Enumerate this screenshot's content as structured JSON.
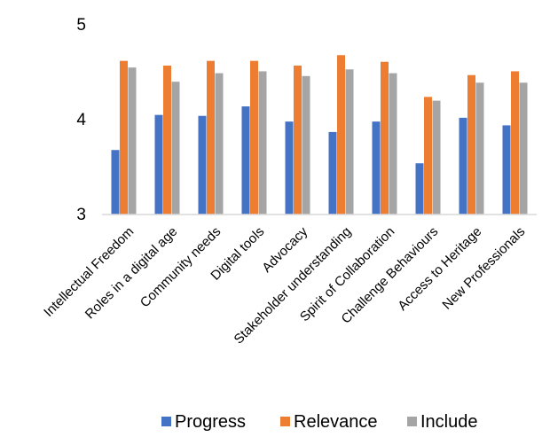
{
  "chart_data": {
    "type": "bar",
    "categories": [
      "Intellectual Freedom",
      "Roles in a digital age",
      "Community needs",
      "Digital tools",
      "Advocacy",
      "Stakeholder understanding",
      "Spirit of Collaboration",
      "Challenge Behaviours",
      "Access to Heritage",
      "New Professionals"
    ],
    "series": [
      {
        "name": "Progress",
        "color": "#4472C4",
        "values": [
          3.68,
          4.05,
          4.04,
          4.14,
          3.98,
          3.87,
          3.98,
          3.54,
          4.02,
          3.94
        ]
      },
      {
        "name": "Relevance",
        "color": "#ED7D31",
        "values": [
          4.62,
          4.57,
          4.62,
          4.62,
          4.57,
          4.68,
          4.61,
          4.24,
          4.47,
          4.51
        ]
      },
      {
        "name": "Include",
        "color": "#A5A5A5",
        "values": [
          4.55,
          4.4,
          4.49,
          4.51,
          4.46,
          4.53,
          4.49,
          4.2,
          4.39,
          4.39
        ]
      }
    ],
    "yticks": [
      "3",
      "4",
      "5"
    ],
    "ylim": [
      3,
      5
    ],
    "title": "",
    "xlabel": "",
    "ylabel": "",
    "grid": false,
    "legend_position": "bottom"
  }
}
